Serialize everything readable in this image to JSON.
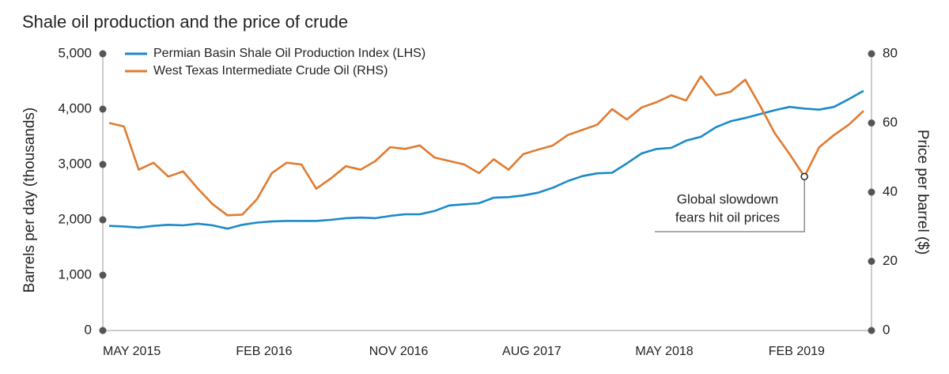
{
  "chart_data": {
    "type": "line",
    "title": "Shale oil production and the price of crude",
    "ylabel": "Barrels per day (thousands)",
    "y2label": "Price per barrel ($)",
    "categories": [
      "MAY 2015",
      null,
      null,
      null,
      null,
      null,
      null,
      null,
      null,
      "FEB 2016",
      null,
      null,
      null,
      null,
      null,
      null,
      null,
      null,
      "NOV 2016",
      null,
      null,
      null,
      null,
      null,
      null,
      null,
      null,
      "AUG 2017",
      null,
      null,
      null,
      null,
      null,
      null,
      null,
      null,
      "MAY 2018",
      null,
      null,
      null,
      null,
      null,
      null,
      null,
      null,
      "FEB 2019",
      null,
      null,
      null,
      null,
      null,
      null
    ],
    "series": [
      {
        "name": "Permian Basin Shale Oil Production Index (LHS)",
        "color": "#1a8ac8",
        "axis": "y",
        "values": [
          1890,
          1880,
          1860,
          1890,
          1910,
          1900,
          1930,
          1900,
          1840,
          1910,
          1950,
          1970,
          1980,
          1980,
          1980,
          2000,
          2030,
          2040,
          2030,
          2070,
          2100,
          2100,
          2160,
          2260,
          2280,
          2300,
          2400,
          2410,
          2440,
          2490,
          2580,
          2700,
          2790,
          2840,
          2850,
          3020,
          3200,
          3280,
          3300,
          3430,
          3500,
          3670,
          3780,
          3840,
          3910,
          3980,
          4040,
          4010,
          3990,
          4040,
          4180,
          4330
        ]
      },
      {
        "name": "West Texas Intermediate Crude Oil (RHS)",
        "color": "#e07b30",
        "axis": "y2",
        "values": [
          60,
          59,
          46.5,
          48.5,
          44.5,
          46,
          41,
          36.5,
          33.3,
          33.5,
          38,
          45.5,
          48.5,
          48,
          41,
          44,
          47.5,
          46.5,
          49,
          53,
          52.5,
          53.5,
          50,
          49,
          48,
          45.5,
          49.5,
          46.5,
          51,
          52.3,
          53.5,
          56.5,
          58,
          59.5,
          64,
          61,
          64.5,
          66,
          68,
          66.5,
          73.5,
          68,
          69,
          72.5,
          65,
          57,
          51,
          44.5,
          53,
          56.5,
          59.5,
          63.5
        ]
      }
    ],
    "ylim": [
      0,
      5000
    ],
    "yticks": [
      0,
      {
        "value": 1000,
        "label": "1,000"
      },
      {
        "value": 2000,
        "label": "2,000"
      },
      {
        "value": 3000,
        "label": "3,000"
      },
      {
        "value": 4000,
        "label": "4,000"
      },
      {
        "value": 5000,
        "label": "5,000"
      }
    ],
    "y2lim": [
      0,
      80
    ],
    "y2ticks": [
      0,
      20,
      40,
      60,
      80
    ],
    "annotation": {
      "text": [
        "Global slowdown",
        "fears hit oil prices"
      ],
      "series": 1,
      "index": 47
    },
    "legend": "top-left",
    "grid": false
  }
}
